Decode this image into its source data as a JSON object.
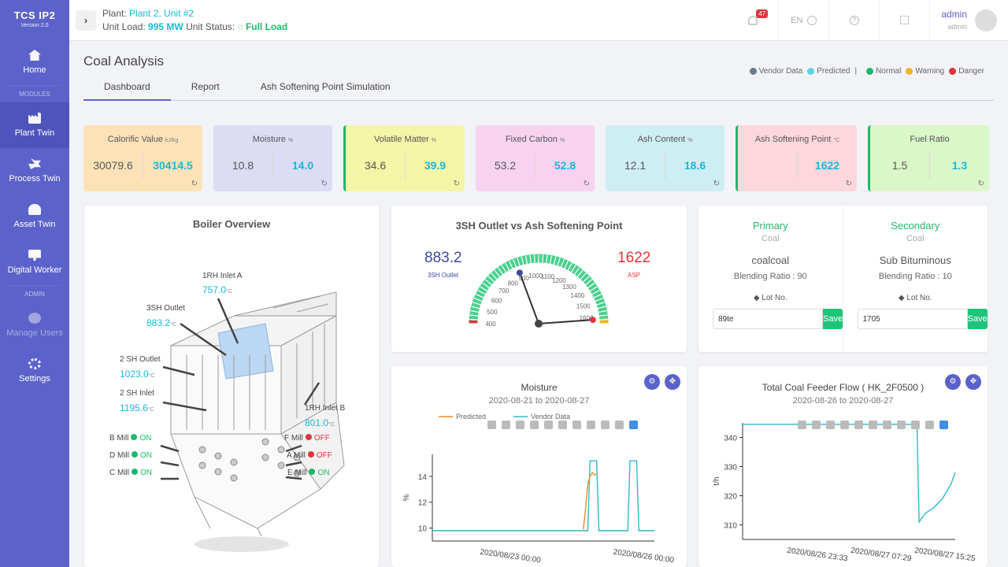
{
  "sidebar": {
    "app_name": "TCS IP2",
    "version": "Version 2.0",
    "items": [
      {
        "label": "Home"
      },
      {
        "label": "Plant Twin"
      },
      {
        "label": "Process Twin"
      },
      {
        "label": "Asset Twin"
      },
      {
        "label": "Digital Worker"
      },
      {
        "label": "Manage Users"
      },
      {
        "label": "Settings"
      }
    ],
    "section_modules": "MODULES",
    "section_admin": "ADMIN"
  },
  "header": {
    "plant_label": "Plant:",
    "plant_value": "Plant 2, Unit #2",
    "unit_load_label": "Unit Load:",
    "unit_load_value": "995 MW",
    "unit_status_label": "Unit Status:",
    "unit_status_value": "Full Load",
    "notifications": "47",
    "language": "EN",
    "user_name": "admin",
    "user_role": "admin"
  },
  "page": {
    "title": "Coal Analysis",
    "tabs": [
      "Dashboard",
      "Report",
      "Ash Softening Point Simulation"
    ]
  },
  "legend": {
    "vendor": "Vendor Data",
    "predicted": "Predicted",
    "normal": "Normal",
    "warning": "Warning",
    "danger": "Danger"
  },
  "kpis": [
    {
      "label": "Calorific Value",
      "unit": "kJ/kg",
      "v1": "30079.6",
      "v2": "30414.5",
      "bg": "#fde2b8",
      "border": ""
    },
    {
      "label": "Moisture",
      "unit": "%",
      "v1": "10.8",
      "v2": "14.0",
      "bg": "#dcdcf5",
      "border": ""
    },
    {
      "label": "Volatile Matter",
      "unit": "%",
      "v1": "34.6",
      "v2": "39.9",
      "bg": "#f5f5a8",
      "border": "#1fb86a"
    },
    {
      "label": "Fixed Carbon",
      "unit": "%",
      "v1": "53.2",
      "v2": "52.8",
      "bg": "#f7d3f0",
      "border": ""
    },
    {
      "label": "Ash Content",
      "unit": "%",
      "v1": "12.1",
      "v2": "18.6",
      "bg": "#cdeef2",
      "border": ""
    },
    {
      "label": "Ash Softening Point",
      "unit": "°C",
      "v1": "",
      "v2": "1622",
      "bg": "#fdd7dc",
      "border": "#1fb86a"
    },
    {
      "label": "Fuel Ratio",
      "unit": "",
      "v1": "1.5",
      "v2": "1.3",
      "bg": "#d9f7c8",
      "border": "#1fb86a"
    }
  ],
  "boiler": {
    "title": "Boiler Overview",
    "rh_a_label": "1RH Inlet A",
    "rh_a_value": "757.0",
    "sh3_label": "3SH Outlet",
    "sh3_value": "883.2",
    "sh2o_label": "2 SH Outlet",
    "sh2o_value": "1023.0",
    "sh2i_label": "2 SH Inlet",
    "sh2i_value": "1195.6",
    "rh_b_label": "1RH Inlet B",
    "rh_b_value": "801.0",
    "unit": "°C",
    "mills": [
      {
        "name": "B Mill",
        "state": "ON"
      },
      {
        "name": "D Mill",
        "state": "ON"
      },
      {
        "name": "C Mill",
        "state": "ON"
      },
      {
        "name": "F Mill",
        "state": "OFF"
      },
      {
        "name": "A Mill",
        "state": "OFF"
      },
      {
        "name": "E Mill",
        "state": "ON"
      }
    ]
  },
  "gauge": {
    "title": "3SH Outlet vs Ash Softening Point",
    "left_value": "883.2",
    "left_label": "3SH Outlet",
    "right_value": "1622",
    "right_label": "ASP",
    "ticks": [
      "400",
      "500",
      "600",
      "700",
      "800",
      "900",
      "1000",
      "1100",
      "1200",
      "1300",
      "1400",
      "1500",
      "1600"
    ],
    "min": 400,
    "max": 1650,
    "needle1": 883.2,
    "needle2": 1622
  },
  "coal": {
    "primary": {
      "heading": "Primary",
      "sub": "Coal",
      "name": "coalcoal",
      "blend": "Blending Ratio : 90",
      "lot_label": "Lot No.",
      "lot_value": "89te",
      "save": "Save"
    },
    "secondary": {
      "heading": "Secondary",
      "sub": "Coal",
      "name": "Sub Bituminous",
      "blend": "Blending Ratio : 10",
      "lot_label": "Lot No.",
      "lot_value": "1705",
      "save": "Save"
    }
  },
  "chart_data": [
    {
      "type": "line",
      "title": "Moisture",
      "subtitle": "2020-08-21 to 2020-08-27",
      "ylabel": "%",
      "xlabel": "",
      "ylim": [
        9,
        15.7
      ],
      "yticks": [
        "10",
        "12",
        "14"
      ],
      "xticks": [
        "2020/08/23 00:00",
        "2020/08/26 00:00"
      ],
      "legend": [
        "Predicted",
        "Vendor Data"
      ],
      "series": [
        {
          "name": "Vendor Data",
          "color": "#2fb8c9",
          "x": [
            0,
            0.7,
            0.71,
            0.74,
            0.75,
            0.88,
            0.89,
            0.92,
            0.93,
            1.0
          ],
          "y": [
            9.8,
            9.8,
            15.2,
            15.2,
            9.8,
            9.8,
            15.2,
            15.2,
            9.8,
            9.8
          ]
        },
        {
          "name": "Predicted",
          "color": "#f08a24",
          "x": [
            0.68,
            0.69,
            0.7,
            0.71,
            0.72,
            0.73,
            0.74
          ],
          "y": [
            9.9,
            11.5,
            13.4,
            14.0,
            14.3,
            14.1,
            14.2
          ]
        }
      ]
    },
    {
      "type": "line",
      "title": "Total Coal Feeder Flow ( HK_2F0500 )",
      "subtitle": "2020-08-26 to 2020-08-27",
      "ylabel": "t/h",
      "xlabel": "",
      "ylim": [
        305,
        345
      ],
      "yticks": [
        "310",
        "320",
        "330",
        "340"
      ],
      "xticks": [
        "2020/08/26 23:33",
        "2020/08/27 07:29",
        "2020/08/27 15:25"
      ],
      "series": [
        {
          "name": "Vendor Data",
          "color": "#2fb8c9",
          "x": [
            0,
            0.82,
            0.83,
            0.86,
            0.9,
            0.94,
            0.98,
            1.0
          ],
          "y": [
            344.5,
            344.5,
            311,
            314,
            316,
            319,
            324,
            328
          ]
        }
      ]
    }
  ],
  "colors": {
    "accent": "#5b62c9",
    "cyan": "#1bb7d6",
    "green": "#1fb86a",
    "red": "#e0353b",
    "orange": "#f0a92a"
  }
}
